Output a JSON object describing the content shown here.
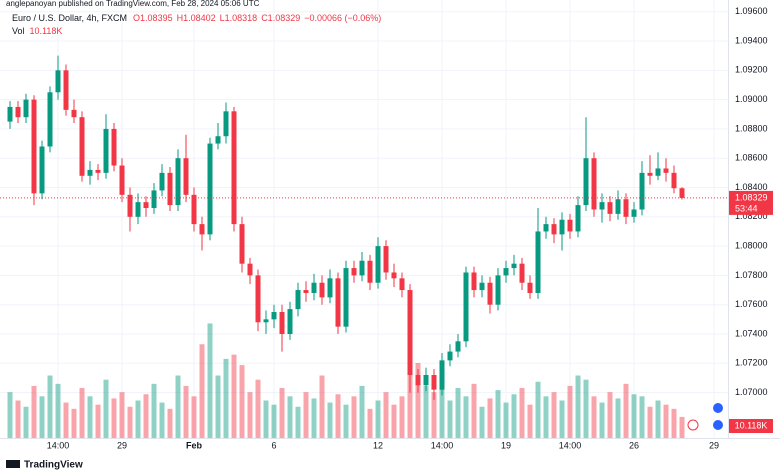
{
  "chart_data": {
    "type": "candlestick",
    "credit": "anglepanoyan published on TradingView.com, Feb 28, 2024 05:06 UTC",
    "symbol": "Euro / U.S. Dollar, 4h, FXCM",
    "legend": {
      "open": "O1.08395",
      "high": "H1.08402",
      "low": "L1.08318",
      "close": "C1.08329",
      "change": "−0.00066 (−0.06%)",
      "volume_name": "Vol",
      "volume": "10.118K"
    },
    "last_price_label": "1.08329",
    "countdown": "53:44",
    "volume_tag": "10.118K",
    "brand": "TradingView",
    "up_color": "#089981",
    "down_color": "#f23645",
    "categories": [
      null,
      null,
      null,
      null,
      null,
      null,
      "14:00",
      null,
      null,
      null,
      null,
      null,
      null,
      null,
      "29",
      null,
      null,
      null,
      null,
      null,
      null,
      null,
      null,
      "Feb",
      null,
      null,
      null,
      null,
      null,
      null,
      null,
      null,
      null,
      "6",
      null,
      null,
      null,
      null,
      null,
      null,
      null,
      null,
      null,
      null,
      null,
      null,
      "12",
      null,
      null,
      null,
      null,
      null,
      null,
      null,
      "14:00",
      null,
      null,
      null,
      null,
      null,
      null,
      null,
      "19",
      null,
      null,
      null,
      null,
      null,
      null,
      null,
      "14:00",
      null,
      null,
      null,
      null,
      null,
      null,
      null,
      "26",
      null,
      null,
      null,
      null,
      null,
      null,
      null,
      null,
      null,
      "29"
    ],
    "candles": [
      [
        1.0885,
        1.0899,
        1.088,
        1.0895
      ],
      [
        1.0895,
        1.0899,
        1.0884,
        1.0888
      ],
      [
        1.0888,
        1.0904,
        1.0884,
        1.09
      ],
      [
        1.09,
        1.0903,
        1.0828,
        1.0836
      ],
      [
        1.0836,
        1.0872,
        1.0832,
        1.0868
      ],
      [
        1.0868,
        1.0909,
        1.0864,
        1.0905
      ],
      [
        1.0905,
        1.093,
        1.09,
        1.092
      ],
      [
        1.092,
        1.0924,
        1.0889,
        1.0893
      ],
      [
        1.0893,
        1.09,
        1.0884,
        1.0888
      ],
      [
        1.0888,
        1.0892,
        1.0844,
        1.0848
      ],
      [
        1.0848,
        1.0858,
        1.0842,
        1.0852
      ],
      [
        1.0852,
        1.0856,
        1.0845,
        1.085
      ],
      [
        1.085,
        1.089,
        1.0846,
        1.088
      ],
      [
        1.088,
        1.0884,
        1.0851,
        1.0855
      ],
      [
        1.0855,
        1.086,
        1.083,
        1.0835
      ],
      [
        1.0835,
        1.084,
        1.081,
        1.082
      ],
      [
        1.082,
        1.0836,
        1.0815,
        1.083
      ],
      [
        1.083,
        1.0834,
        1.082,
        1.0826
      ],
      [
        1.0826,
        1.0843,
        1.0822,
        1.0838
      ],
      [
        1.0838,
        1.0856,
        1.0834,
        1.085
      ],
      [
        1.085,
        1.0854,
        1.0824,
        1.0828
      ],
      [
        1.0828,
        1.0866,
        1.0824,
        1.086
      ],
      [
        1.086,
        1.0876,
        1.083,
        1.0835
      ],
      [
        1.0835,
        1.084,
        1.081,
        1.0815
      ],
      [
        1.0815,
        1.082,
        1.0797,
        1.0808
      ],
      [
        1.0808,
        1.0874,
        1.0804,
        1.087
      ],
      [
        1.087,
        1.0884,
        1.0866,
        1.0875
      ],
      [
        1.0875,
        1.0898,
        1.087,
        1.0892
      ],
      [
        1.0892,
        1.0895,
        1.081,
        1.0815
      ],
      [
        1.0815,
        1.082,
        1.0782,
        1.0788
      ],
      [
        1.0788,
        1.0792,
        1.0774,
        1.078
      ],
      [
        1.078,
        1.0784,
        1.0742,
        1.0748
      ],
      [
        1.0748,
        1.0756,
        1.074,
        1.075
      ],
      [
        1.075,
        1.076,
        1.0744,
        1.0755
      ],
      [
        1.0755,
        1.076,
        1.0728,
        1.074
      ],
      [
        1.074,
        1.0762,
        1.0736,
        1.0757
      ],
      [
        1.0757,
        1.0775,
        1.0752,
        1.077
      ],
      [
        1.077,
        1.0776,
        1.0762,
        1.0768
      ],
      [
        1.0768,
        1.0781,
        1.0763,
        1.0775
      ],
      [
        1.0775,
        1.078,
        1.076,
        1.0765
      ],
      [
        1.0765,
        1.0784,
        1.0761,
        1.0778
      ],
      [
        1.0778,
        1.0782,
        1.074,
        1.0745
      ],
      [
        1.0745,
        1.079,
        1.0741,
        1.0785
      ],
      [
        1.0785,
        1.079,
        1.0775,
        1.078
      ],
      [
        1.078,
        1.0796,
        1.0776,
        1.079
      ],
      [
        1.079,
        1.0794,
        1.077,
        1.0775
      ],
      [
        1.0775,
        1.0806,
        1.0771,
        1.08
      ],
      [
        1.08,
        1.0804,
        1.0777,
        1.0782
      ],
      [
        1.0782,
        1.0788,
        1.0772,
        1.0778
      ],
      [
        1.0778,
        1.0782,
        1.0765,
        1.077
      ],
      [
        1.077,
        1.0774,
        1.07,
        1.0712
      ],
      [
        1.0712,
        1.0716,
        1.07,
        1.0705
      ],
      [
        1.0705,
        1.0717,
        1.0701,
        1.0712
      ],
      [
        1.0712,
        1.0716,
        1.0695,
        1.0702
      ],
      [
        1.0702,
        1.0727,
        1.0698,
        1.0722
      ],
      [
        1.0722,
        1.0733,
        1.0718,
        1.0728
      ],
      [
        1.0728,
        1.074,
        1.0724,
        1.0735
      ],
      [
        1.0735,
        1.0786,
        1.0731,
        1.0782
      ],
      [
        1.0782,
        1.0786,
        1.0765,
        1.077
      ],
      [
        1.077,
        1.078,
        1.0765,
        1.0775
      ],
      [
        1.0775,
        1.0779,
        1.0754,
        1.076
      ],
      [
        1.076,
        1.0785,
        1.0756,
        1.078
      ],
      [
        1.078,
        1.079,
        1.0775,
        1.0785
      ],
      [
        1.0785,
        1.0794,
        1.078,
        1.0788
      ],
      [
        1.0788,
        1.0792,
        1.077,
        1.0775
      ],
      [
        1.0775,
        1.078,
        1.0764,
        1.0768
      ],
      [
        1.0768,
        1.0826,
        1.0764,
        1.081
      ],
      [
        1.081,
        1.082,
        1.0805,
        1.0815
      ],
      [
        1.0815,
        1.0819,
        1.0802,
        1.0808
      ],
      [
        1.0808,
        1.0823,
        1.0797,
        1.0818
      ],
      [
        1.0818,
        1.0822,
        1.0805,
        1.081
      ],
      [
        1.081,
        1.0834,
        1.0806,
        1.0828
      ],
      [
        1.0828,
        1.0888,
        1.0824,
        1.086
      ],
      [
        1.086,
        1.0864,
        1.082,
        1.0825
      ],
      [
        1.0825,
        1.0836,
        1.0816,
        1.083
      ],
      [
        1.083,
        1.0834,
        1.0817,
        1.0822
      ],
      [
        1.0822,
        1.0838,
        1.0818,
        1.0832
      ],
      [
        1.0832,
        1.0836,
        1.0815,
        1.082
      ],
      [
        1.082,
        1.083,
        1.0816,
        1.0825
      ],
      [
        1.0825,
        1.0858,
        1.0821,
        1.085
      ],
      [
        1.085,
        1.0862,
        1.0842,
        1.0848
      ],
      [
        1.0848,
        1.0864,
        1.0845,
        1.0853
      ],
      [
        1.0853,
        1.086,
        1.0844,
        1.085
      ],
      [
        1.085,
        1.0855,
        1.0836,
        1.08395
      ],
      [
        1.08395,
        1.08402,
        1.08318,
        1.08329
      ],
      null,
      null,
      null,
      null
    ],
    "volumes": [
      22000,
      18000,
      15000,
      25000,
      20000,
      30000,
      26000,
      17000,
      14000,
      24000,
      20000,
      16000,
      28000,
      19000,
      22000,
      15000,
      18000,
      21000,
      26000,
      17000,
      14000,
      30000,
      25000,
      20000,
      45000,
      55000,
      30000,
      38000,
      40000,
      35000,
      22000,
      28000,
      18000,
      16000,
      24000,
      20000,
      15000,
      22000,
      19000,
      30000,
      17000,
      21000,
      16000,
      20000,
      25000,
      14000,
      18000,
      22000,
      16000,
      20000,
      48000,
      36000,
      25000,
      22000,
      28000,
      18000,
      24000,
      20000,
      26000,
      15000,
      19000,
      23000,
      17000,
      21000,
      24000,
      16000,
      27000,
      20000,
      22000,
      18000,
      25000,
      30000,
      28000,
      20000,
      17000,
      22000,
      19000,
      26000,
      21000,
      20000,
      15000,
      18000,
      16000,
      14000,
      10118,
      null,
      null,
      null,
      null
    ],
    "vlim": [
      0,
      60000
    ],
    "ylim": [
      1.0669,
      1.0968
    ],
    "yticks": [
      {
        "value": 1.07,
        "label": "1.07000"
      },
      {
        "value": 1.072,
        "label": "1.07200"
      },
      {
        "value": 1.074,
        "label": "1.07400"
      },
      {
        "value": 1.076,
        "label": "1.07600"
      },
      {
        "value": 1.078,
        "label": "1.07800"
      },
      {
        "value": 1.08,
        "label": "1.08000"
      },
      {
        "value": 1.082,
        "label": "1.08200"
      },
      {
        "value": 1.084,
        "label": "1.08400"
      },
      {
        "value": 1.086,
        "label": "1.08600"
      },
      {
        "value": 1.088,
        "label": "1.08800"
      },
      {
        "value": 1.09,
        "label": "1.09000"
      },
      {
        "value": 1.092,
        "label": "1.09200"
      },
      {
        "value": 1.094,
        "label": "1.09400"
      },
      {
        "value": 1.096,
        "label": "1.09600"
      }
    ],
    "grid": true
  }
}
